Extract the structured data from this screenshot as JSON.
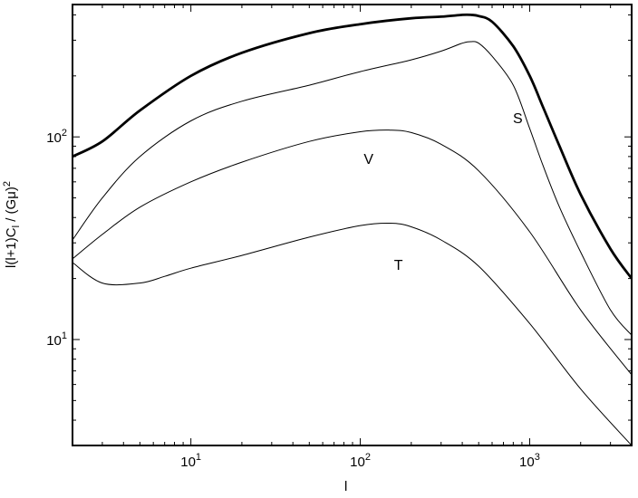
{
  "chart_data": {
    "type": "line",
    "xlabel": "l",
    "ylabel_parts": {
      "pre": "l(l+1)C",
      "sub": "l",
      "mid": " / (G",
      "mu": "μ",
      "post": ")",
      "sup": "2"
    },
    "xscale": "log",
    "yscale": "log",
    "xlim": [
      2,
      4000
    ],
    "ylim": [
      3,
      450
    ],
    "grid": false,
    "legend": "none",
    "x_ticks": [
      {
        "value": 10,
        "base": "10",
        "exp": "1"
      },
      {
        "value": 100,
        "base": "10",
        "exp": "2"
      },
      {
        "value": 1000,
        "base": "10",
        "exp": "3"
      }
    ],
    "y_ticks": [
      {
        "value": 10,
        "base": "10",
        "exp": "1"
      },
      {
        "value": 100,
        "base": "10",
        "exp": "2"
      }
    ],
    "series": [
      {
        "id": "total",
        "style": "thick",
        "x": [
          2,
          3,
          5,
          10,
          20,
          50,
          100,
          200,
          300,
          400,
          450,
          500,
          600,
          800,
          1000,
          1200,
          1500,
          2000,
          3000,
          4000
        ],
        "y": [
          80,
          95,
          135,
          200,
          260,
          325,
          360,
          385,
          392,
          400,
          400,
          395,
          370,
          280,
          200,
          140,
          90,
          52,
          28,
          20
        ]
      },
      {
        "id": "S",
        "label": "S",
        "label_x": 850,
        "label_y": 122,
        "x": [
          2,
          3,
          5,
          10,
          20,
          50,
          100,
          200,
          300,
          400,
          450,
          500,
          600,
          800,
          1000,
          1200,
          1500,
          2000,
          3000,
          4000
        ],
        "y": [
          31,
          50,
          80,
          120,
          150,
          180,
          210,
          240,
          265,
          290,
          295,
          290,
          250,
          180,
          110,
          72,
          45,
          27,
          14,
          10.5
        ]
      },
      {
        "id": "V",
        "label": "V",
        "label_x": 112,
        "label_y": 77,
        "x": [
          2,
          3,
          5,
          10,
          20,
          50,
          100,
          150,
          200,
          300,
          500,
          1000,
          2000,
          4000
        ],
        "y": [
          25,
          33,
          45,
          60,
          75,
          95,
          106,
          108,
          105,
          92,
          68,
          34,
          14,
          6.7
        ]
      },
      {
        "id": "T",
        "label": "T",
        "label_x": 168,
        "label_y": 23,
        "x": [
          2,
          3,
          5,
          7,
          10,
          20,
          50,
          100,
          150,
          200,
          300,
          500,
          1000,
          2000,
          4000
        ],
        "y": [
          24,
          19,
          19,
          20.5,
          22.5,
          26,
          32,
          36.5,
          37.5,
          36,
          31,
          23,
          12,
          5.7,
          3
        ]
      }
    ]
  }
}
